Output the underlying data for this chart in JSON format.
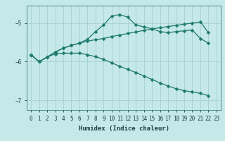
{
  "xlabel": "Humidex (Indice chaleur)",
  "bg_color": "#c5e8e8",
  "grid_color": "#a8d0d0",
  "line_color": "#1e7a6e",
  "xlim": [
    -0.5,
    23.5
  ],
  "ylim": [
    -7.25,
    -4.55
  ],
  "yticks": [
    -7,
    -6,
    -5
  ],
  "xticks": [
    0,
    1,
    2,
    3,
    4,
    5,
    6,
    7,
    8,
    9,
    10,
    11,
    12,
    13,
    14,
    15,
    16,
    17,
    18,
    19,
    20,
    21,
    22,
    23
  ],
  "line1_x": [
    0,
    1,
    2,
    3,
    4,
    5,
    6,
    7,
    8,
    9,
    10,
    11,
    12,
    13,
    14,
    15,
    16,
    17,
    18,
    19,
    20,
    21,
    22
  ],
  "line1_y": [
    -5.82,
    -6.0,
    -5.88,
    -5.75,
    -5.65,
    -5.58,
    -5.52,
    -5.42,
    -5.22,
    -5.05,
    -4.82,
    -4.78,
    -4.85,
    -5.05,
    -5.1,
    -5.15,
    -5.22,
    -5.25,
    -5.22,
    -5.2,
    -5.18,
    -5.4,
    -5.52
  ],
  "line2_x": [
    0,
    1,
    2,
    3,
    4,
    5,
    6,
    7,
    8,
    9,
    10,
    11,
    12,
    13,
    14,
    15,
    16,
    17,
    18,
    19,
    20,
    21,
    22
  ],
  "line2_y": [
    -5.82,
    -6.0,
    -5.88,
    -5.75,
    -5.65,
    -5.58,
    -5.52,
    -5.47,
    -5.43,
    -5.4,
    -5.35,
    -5.31,
    -5.27,
    -5.23,
    -5.19,
    -5.15,
    -5.12,
    -5.09,
    -5.06,
    -5.03,
    -5.0,
    -4.97,
    -5.25
  ],
  "line3_x": [
    0,
    1,
    2,
    3,
    4,
    5,
    6,
    7,
    8,
    9,
    10,
    11,
    12,
    13,
    14,
    15,
    16,
    17,
    18,
    19,
    20,
    21,
    22
  ],
  "line3_y": [
    -5.82,
    -6.0,
    -5.88,
    -5.8,
    -5.78,
    -5.78,
    -5.78,
    -5.82,
    -5.87,
    -5.94,
    -6.03,
    -6.12,
    -6.2,
    -6.28,
    -6.37,
    -6.46,
    -6.55,
    -6.63,
    -6.7,
    -6.75,
    -6.78,
    -6.82,
    -6.88
  ]
}
